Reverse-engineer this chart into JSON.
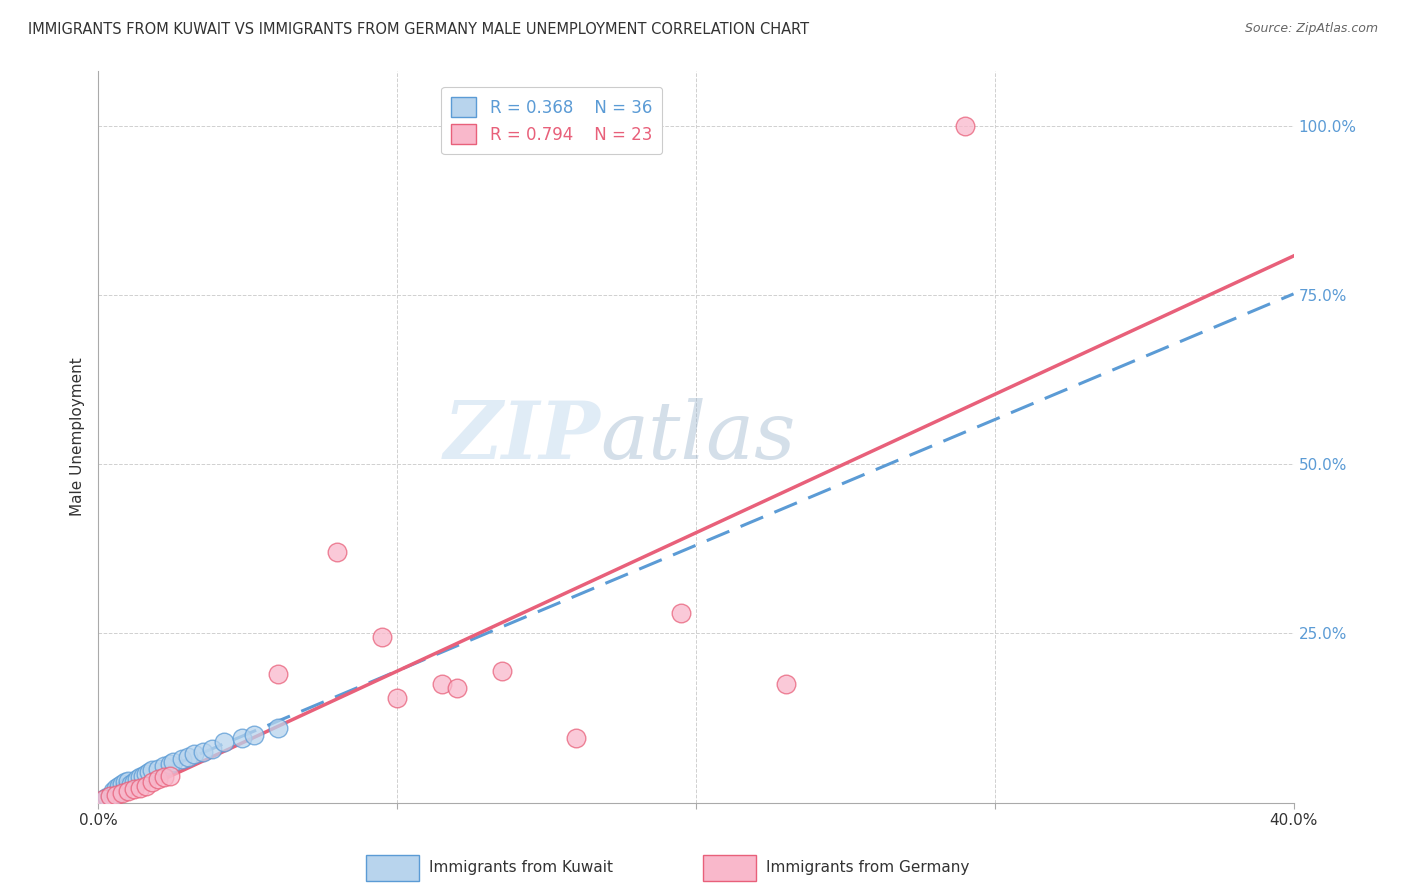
{
  "title": "IMMIGRANTS FROM KUWAIT VS IMMIGRANTS FROM GERMANY MALE UNEMPLOYMENT CORRELATION CHART",
  "source": "Source: ZipAtlas.com",
  "ylabel": "Male Unemployment",
  "xlim": [
    0.0,
    0.4
  ],
  "ylim": [
    0.0,
    1.08
  ],
  "x_ticks": [
    0.0,
    0.1,
    0.2,
    0.3,
    0.4
  ],
  "y_ticks": [
    0.0,
    0.25,
    0.5,
    0.75,
    1.0
  ],
  "y_tick_labels": [
    "",
    "25.0%",
    "50.0%",
    "75.0%",
    "100.0%"
  ],
  "kuwait_R": 0.368,
  "kuwait_N": 36,
  "germany_R": 0.794,
  "germany_N": 23,
  "kuwait_color": "#b8d4ed",
  "germany_color": "#f9b8cb",
  "kuwait_line_color": "#5b9bd5",
  "germany_line_color": "#e8607a",
  "watermark_zip": "ZIP",
  "watermark_atlas": "atlas",
  "kuwait_x": [
    0.002,
    0.003,
    0.004,
    0.005,
    0.005,
    0.006,
    0.006,
    0.007,
    0.007,
    0.008,
    0.008,
    0.009,
    0.009,
    0.01,
    0.01,
    0.011,
    0.012,
    0.013,
    0.014,
    0.015,
    0.016,
    0.017,
    0.018,
    0.02,
    0.022,
    0.024,
    0.025,
    0.028,
    0.03,
    0.032,
    0.035,
    0.038,
    0.042,
    0.048,
    0.052,
    0.06
  ],
  "kuwait_y": [
    0.005,
    0.008,
    0.01,
    0.012,
    0.018,
    0.015,
    0.022,
    0.02,
    0.025,
    0.018,
    0.028,
    0.022,
    0.03,
    0.025,
    0.032,
    0.028,
    0.03,
    0.035,
    0.038,
    0.04,
    0.042,
    0.045,
    0.048,
    0.05,
    0.055,
    0.058,
    0.06,
    0.065,
    0.068,
    0.072,
    0.075,
    0.08,
    0.09,
    0.095,
    0.1,
    0.11
  ],
  "germany_x": [
    0.002,
    0.004,
    0.006,
    0.008,
    0.01,
    0.012,
    0.014,
    0.016,
    0.018,
    0.02,
    0.022,
    0.024,
    0.06,
    0.08,
    0.095,
    0.1,
    0.115,
    0.12,
    0.135,
    0.16,
    0.195,
    0.23,
    0.29
  ],
  "germany_y": [
    0.005,
    0.01,
    0.012,
    0.015,
    0.018,
    0.02,
    0.022,
    0.025,
    0.03,
    0.035,
    0.038,
    0.04,
    0.19,
    0.37,
    0.245,
    0.155,
    0.175,
    0.17,
    0.195,
    0.095,
    0.28,
    0.175,
    1.0
  ],
  "background_color": "#ffffff",
  "grid_color": "#d0d0d0"
}
